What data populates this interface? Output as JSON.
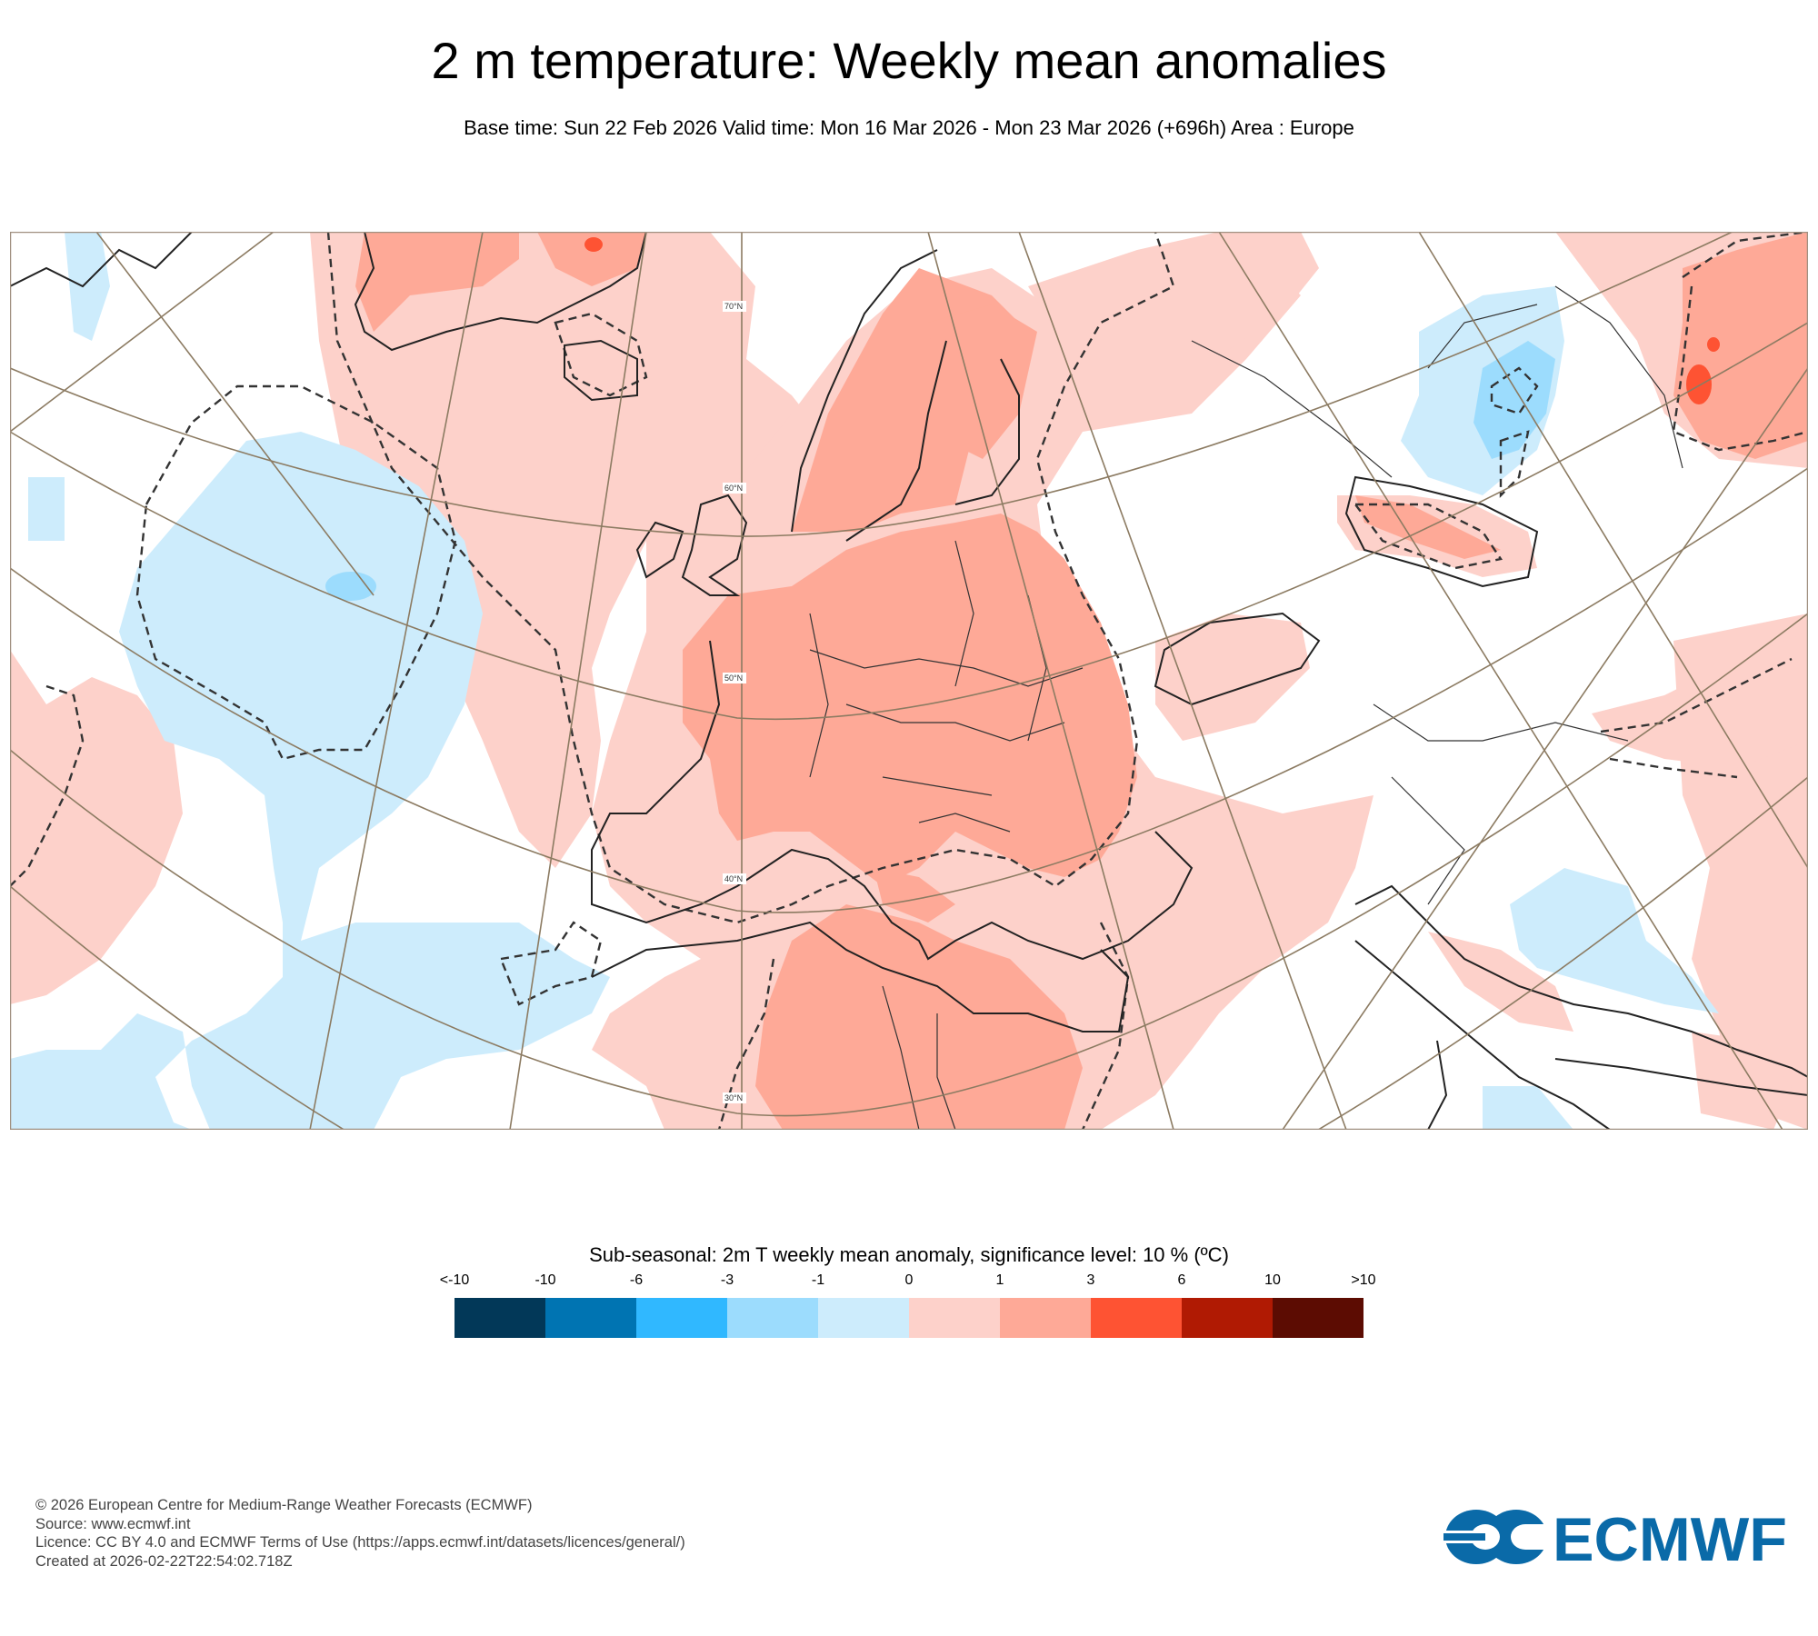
{
  "header": {
    "title": "2 m temperature: Weekly mean anomalies",
    "subtitle": "Base time: Sun 22 Feb 2026 Valid time: Mon 16 Mar 2026 - Mon 23 Mar 2026 (+696h) Area : Europe"
  },
  "map": {
    "area": "Europe",
    "latitude_labels": [
      "70°N",
      "60°N",
      "50°N",
      "40°N",
      "30°N"
    ],
    "colors": {
      "coast": "#222222",
      "graticule": "#8c7b62",
      "frame": "#a09080",
      "significance_contour": "#333333"
    }
  },
  "legend": {
    "title": "Sub-seasonal: 2m T weekly mean anomaly, significance level: 10 % (ºC)",
    "ticks": [
      "<-10",
      "-10",
      "-6",
      "-3",
      "-1",
      "0",
      "1",
      "3",
      "6",
      "10",
      ">10"
    ],
    "bins": [
      {
        "range": "<-10",
        "color": "#023858"
      },
      {
        "range": "-10 to -6",
        "color": "#0074b2"
      },
      {
        "range": "-6 to -3",
        "color": "#30b8ff"
      },
      {
        "range": "-3 to -1",
        "color": "#9cdcfd"
      },
      {
        "range": "-1 to 0",
        "color": "#cdecfc"
      },
      {
        "range": "0 to 1",
        "color": "#fdd1ca"
      },
      {
        "range": "1 to 3",
        "color": "#fea997"
      },
      {
        "range": "3 to 6",
        "color": "#fe5333"
      },
      {
        "range": "6 to 10",
        "color": "#b01a03"
      },
      {
        "range": ">10",
        "color": "#5c0c02"
      }
    ]
  },
  "footer": {
    "lines": [
      "© 2026 European Centre for Medium-Range Weather Forecasts (ECMWF)",
      "Source: www.ecmwf.int",
      "Licence: CC BY 4.0 and ECMWF Terms of Use (https://apps.ecmwf.int/datasets/licences/general/)",
      "Created at 2026-02-22T22:54:02.718Z"
    ]
  },
  "logo": {
    "text": "ECMWF",
    "color": "#0a6aa8"
  }
}
